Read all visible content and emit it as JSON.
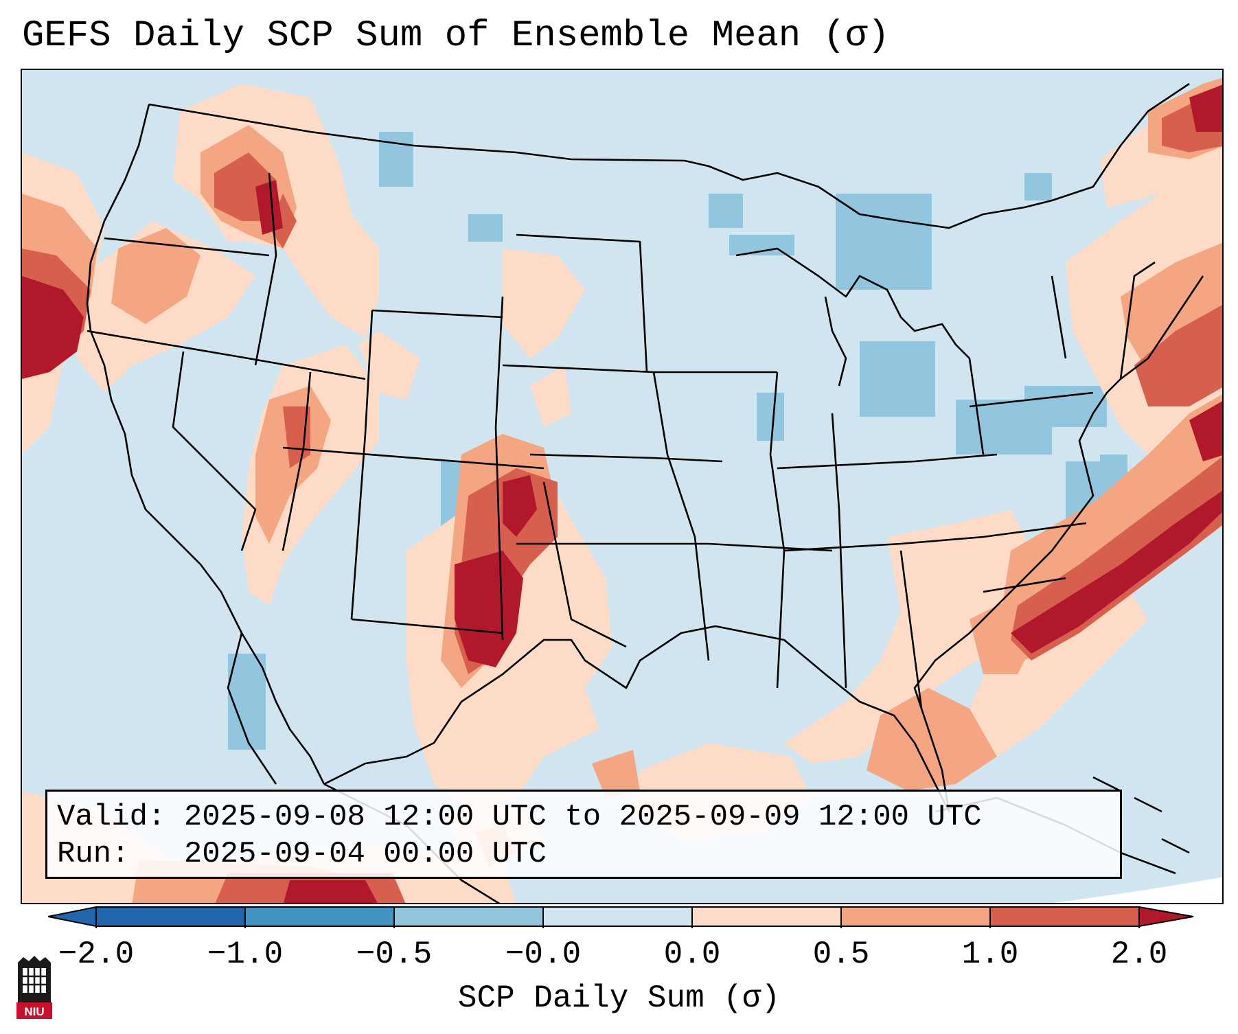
{
  "title": "GEFS Daily SCP Sum of Ensemble Mean (σ)",
  "info": {
    "valid_label": "Valid:",
    "valid_text": "2025-09-08 12:00 UTC to 2025-09-09 12:00 UTC",
    "run_label": "Run:",
    "run_text": "2025-09-04 00:00 UTC"
  },
  "colorbar": {
    "label": "SCP Daily Sum (σ)",
    "ticks": [
      "−2.0",
      "−1.0",
      "−0.5",
      "−0.0",
      "0.0",
      "0.5",
      "1.0",
      "2.0"
    ],
    "colors": [
      "#2166ac",
      "#4393c3",
      "#92c5de",
      "#d1e5f0",
      "#fddbc7",
      "#f4a582",
      "#d6604d",
      "#b2182b"
    ]
  },
  "logo": {
    "text": "NIU",
    "icon": "niu-logo-icon"
  }
}
